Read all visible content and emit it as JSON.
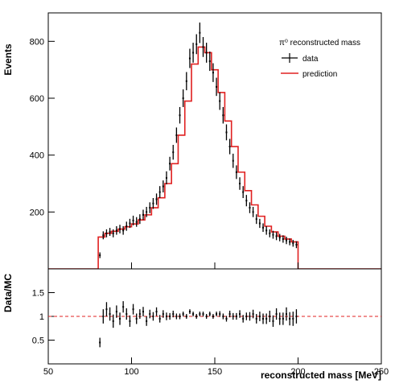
{
  "chart_data": [
    {
      "type": "histogram",
      "title": "",
      "xlabel": "",
      "ylabel": "Events",
      "xlim": [
        50,
        250
      ],
      "ylim": [
        0,
        900
      ],
      "yticks": [
        200,
        400,
        600,
        800
      ],
      "grid": false,
      "legend": {
        "placement": "top-right",
        "header": "π⁰ reconstructed mass",
        "entries": [
          "data",
          "prediction"
        ]
      },
      "series": [
        {
          "name": "data",
          "style": "points-with-errors",
          "color": "#000000",
          "x": [
            81,
            83,
            85,
            87,
            89,
            91,
            93,
            95,
            97,
            99,
            101,
            103,
            105,
            107,
            109,
            111,
            113,
            115,
            117,
            119,
            121,
            123,
            125,
            127,
            129,
            131,
            133,
            135,
            137,
            139,
            141,
            143,
            145,
            147,
            149,
            151,
            153,
            155,
            157,
            159,
            161,
            163,
            165,
            167,
            169,
            171,
            173,
            175,
            177,
            179,
            181,
            183,
            185,
            187,
            189,
            191,
            193,
            195,
            197,
            199
          ],
          "y": [
            48,
            118,
            125,
            130,
            125,
            135,
            140,
            135,
            150,
            160,
            170,
            165,
            175,
            190,
            200,
            215,
            230,
            245,
            270,
            290,
            320,
            370,
            410,
            470,
            540,
            600,
            660,
            740,
            760,
            790,
            830,
            780,
            760,
            730,
            690,
            640,
            590,
            540,
            480,
            430,
            380,
            340,
            300,
            270,
            240,
            215,
            200,
            175,
            160,
            145,
            135,
            125,
            120,
            115,
            110,
            105,
            100,
            95,
            90,
            85
          ],
          "yerr": [
            10,
            14,
            14,
            14,
            14,
            15,
            15,
            15,
            16,
            16,
            17,
            17,
            17,
            18,
            18,
            19,
            19,
            20,
            21,
            21,
            23,
            24,
            26,
            27,
            29,
            31,
            32,
            34,
            35,
            35,
            36,
            35,
            35,
            34,
            33,
            32,
            31,
            29,
            28,
            27,
            25,
            24,
            22,
            21,
            20,
            19,
            18,
            17,
            16,
            15,
            15,
            14,
            14,
            14,
            13,
            13,
            13,
            12,
            12,
            12
          ]
        },
        {
          "name": "prediction",
          "style": "step",
          "color": "#e02020",
          "bin_edges": [
            50,
            80,
            84,
            88,
            92,
            96,
            100,
            104,
            108,
            112,
            116,
            120,
            124,
            128,
            132,
            136,
            140,
            144,
            148,
            152,
            156,
            160,
            164,
            168,
            172,
            176,
            180,
            184,
            188,
            192,
            196,
            200,
            250
          ],
          "values": [
            0,
            112,
            125,
            132,
            140,
            148,
            158,
            172,
            190,
            215,
            250,
            300,
            370,
            470,
            590,
            720,
            780,
            760,
            700,
            620,
            520,
            430,
            340,
            275,
            225,
            185,
            150,
            130,
            115,
            105,
            95,
            0
          ]
        }
      ]
    },
    {
      "type": "scatter",
      "title": "",
      "xlabel": "reconstructed mass [MeV]",
      "ylabel": "Data/MC",
      "xlim": [
        50,
        250
      ],
      "ylim": [
        0,
        2
      ],
      "xticks": [
        50,
        100,
        150,
        200,
        250
      ],
      "yticks": [
        0.5,
        1,
        1.5
      ],
      "grid": false,
      "reference_line": {
        "y": 1,
        "style": "dashed",
        "color": "#e02020"
      },
      "series": [
        {
          "name": "",
          "color": "#000000",
          "x": [
            81,
            83,
            85,
            87,
            89,
            91,
            93,
            95,
            97,
            99,
            101,
            103,
            105,
            107,
            109,
            111,
            113,
            115,
            117,
            119,
            121,
            123,
            125,
            127,
            129,
            131,
            133,
            135,
            137,
            139,
            141,
            143,
            145,
            147,
            149,
            151,
            153,
            155,
            157,
            159,
            161,
            163,
            165,
            167,
            169,
            171,
            173,
            175,
            177,
            179,
            181,
            183,
            185,
            187,
            189,
            191,
            193,
            195,
            197,
            199
          ],
          "y": [
            0.45,
            1.0,
            1.15,
            1.05,
            0.9,
            1.1,
            0.95,
            1.2,
            1.05,
            0.9,
            1.15,
            0.95,
            1.05,
            1.1,
            0.9,
            1.05,
            1.0,
            1.1,
            0.95,
            1.05,
            1.0,
            1.0,
            1.05,
            1.0,
            1.0,
            1.05,
            1.0,
            1.1,
            1.05,
            1.0,
            1.05,
            1.05,
            1.0,
            1.05,
            1.0,
            1.05,
            1.05,
            1.0,
            0.95,
            1.05,
            1.0,
            1.0,
            1.05,
            0.95,
            1.0,
            1.0,
            1.05,
            0.95,
            1.0,
            0.95,
            0.95,
            1.0,
            0.9,
            1.05,
            0.95,
            0.95,
            1.05,
            0.95,
            0.95,
            1.0
          ],
          "yerr": [
            0.1,
            0.15,
            0.15,
            0.14,
            0.14,
            0.13,
            0.13,
            0.12,
            0.12,
            0.12,
            0.11,
            0.11,
            0.1,
            0.1,
            0.1,
            0.09,
            0.09,
            0.09,
            0.08,
            0.08,
            0.08,
            0.07,
            0.07,
            0.06,
            0.06,
            0.05,
            0.05,
            0.05,
            0.05,
            0.05,
            0.05,
            0.05,
            0.05,
            0.05,
            0.05,
            0.05,
            0.06,
            0.06,
            0.06,
            0.07,
            0.07,
            0.07,
            0.08,
            0.08,
            0.08,
            0.09,
            0.09,
            0.1,
            0.1,
            0.11,
            0.11,
            0.12,
            0.12,
            0.12,
            0.13,
            0.13,
            0.14,
            0.14,
            0.15,
            0.15
          ]
        }
      ]
    }
  ]
}
